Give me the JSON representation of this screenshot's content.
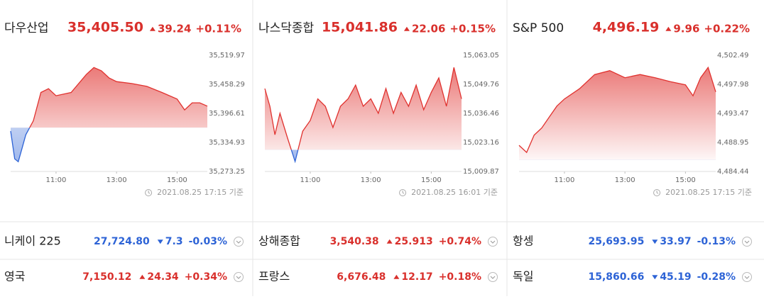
{
  "chart_data": [
    {
      "type": "line",
      "title": "다우산업",
      "price": "35,405.50",
      "change": "39.24",
      "change_pct": "+0.11%",
      "direction": "up",
      "color": "#e0322f",
      "down_color": "#2d63d6",
      "timestamp": "2021.08.25 17:15 기준",
      "xlim": [
        "09:30",
        "16:00"
      ],
      "xticks": [
        "11:00",
        "13:00",
        "15:00"
      ],
      "ylim": [
        35273.25,
        35519.97
      ],
      "yticks": [
        {
          "value": 35273.25,
          "label": "35,273.25"
        },
        {
          "value": 35334.93,
          "label": "35,334.93"
        },
        {
          "value": 35396.61,
          "label": "35,396.61"
        },
        {
          "value": 35458.29,
          "label": "35,458.29"
        },
        {
          "value": 35519.97,
          "label": "35,519.97"
        }
      ],
      "x": [
        "09:30",
        "09:38",
        "09:45",
        "09:52",
        "10:00",
        "10:15",
        "10:30",
        "10:45",
        "11:00",
        "11:30",
        "12:00",
        "12:15",
        "12:30",
        "12:45",
        "13:00",
        "13:30",
        "14:00",
        "14:30",
        "15:00",
        "15:15",
        "15:30",
        "15:45",
        "16:00"
      ],
      "values": [
        35359,
        35300,
        35294,
        35320,
        35351,
        35381,
        35441,
        35449,
        35434,
        35441,
        35479,
        35494,
        35487,
        35472,
        35464,
        35460,
        35454,
        35441,
        35427,
        35404,
        35419,
        35419,
        35412
      ]
    },
    {
      "type": "line",
      "title": "나스닥종합",
      "price": "15,041.86",
      "change": "22.06",
      "change_pct": "+0.15%",
      "direction": "up",
      "color": "#e0322f",
      "down_color": "#2d63d6",
      "timestamp": "2021.08.25 16:01 기준",
      "xlim": [
        "09:30",
        "16:00"
      ],
      "xticks": [
        "11:00",
        "13:00",
        "15:00"
      ],
      "ylim": [
        15009.87,
        15063.05
      ],
      "yticks": [
        {
          "value": 15009.87,
          "label": "15,009.87"
        },
        {
          "value": 15023.16,
          "label": "15,023.16"
        },
        {
          "value": 15036.46,
          "label": "15,036.46"
        },
        {
          "value": 15049.76,
          "label": "15,049.76"
        },
        {
          "value": 15063.05,
          "label": "15,063.05"
        }
      ],
      "x": [
        "09:30",
        "09:40",
        "09:50",
        "10:00",
        "10:15",
        "10:30",
        "10:45",
        "11:00",
        "11:15",
        "11:30",
        "11:45",
        "12:00",
        "12:15",
        "12:30",
        "12:45",
        "13:00",
        "13:15",
        "13:30",
        "13:45",
        "14:00",
        "14:15",
        "14:30",
        "14:45",
        "15:00",
        "15:15",
        "15:30",
        "15:45",
        "16:00"
      ],
      "values": [
        15047.8,
        15039.7,
        15026.7,
        15036.5,
        15025.1,
        15014.4,
        15028.3,
        15033.2,
        15043.1,
        15039.7,
        15030.0,
        15039.7,
        15043.1,
        15049.4,
        15039.7,
        15043.1,
        15036.5,
        15047.8,
        15036.5,
        15046.1,
        15039.7,
        15049.4,
        15038.1,
        15046.1,
        15052.7,
        15039.7,
        15057.5,
        15043.1
      ]
    },
    {
      "type": "line",
      "title": "S&P 500",
      "price": "4,496.19",
      "change": "9.96",
      "change_pct": "+0.22%",
      "direction": "up",
      "color": "#e0322f",
      "down_color": "#2d63d6",
      "timestamp": "2021.08.25 17:15 기준",
      "xlim": [
        "09:30",
        "16:00"
      ],
      "xticks": [
        "11:00",
        "13:00",
        "15:00"
      ],
      "ylim": [
        4484.44,
        4502.49
      ],
      "yticks": [
        {
          "value": 4484.44,
          "label": "4,484.44"
        },
        {
          "value": 4488.95,
          "label": "4,488.95"
        },
        {
          "value": 4493.47,
          "label": "4,493.47"
        },
        {
          "value": 4497.98,
          "label": "4,497.98"
        },
        {
          "value": 4502.49,
          "label": "4,502.49"
        }
      ],
      "x": [
        "09:30",
        "09:45",
        "10:00",
        "10:15",
        "10:30",
        "10:45",
        "11:00",
        "11:30",
        "12:00",
        "12:30",
        "13:00",
        "13:30",
        "14:00",
        "14:30",
        "15:00",
        "15:15",
        "15:30",
        "15:45",
        "16:00"
      ],
      "values": [
        4488.5,
        4487.4,
        4490.1,
        4491.2,
        4492.9,
        4494.6,
        4495.7,
        4497.3,
        4499.5,
        4500.1,
        4499.0,
        4499.5,
        4499.0,
        4498.4,
        4497.9,
        4496.2,
        4499.0,
        4500.6,
        4496.8
      ]
    }
  ],
  "markets": [
    [
      {
        "name": "니케이 225",
        "price": "27,724.80",
        "change": "7.3",
        "change_pct": "-0.03%",
        "direction": "down"
      },
      {
        "name": "상해종합",
        "price": "3,540.38",
        "change": "25.913",
        "change_pct": "+0.74%",
        "direction": "up"
      },
      {
        "name": "항셍",
        "price": "25,693.95",
        "change": "33.97",
        "change_pct": "-0.13%",
        "direction": "down"
      }
    ],
    [
      {
        "name": "영국",
        "price": "7,150.12",
        "change": "24.34",
        "change_pct": "+0.34%",
        "direction": "up"
      },
      {
        "name": "프랑스",
        "price": "6,676.48",
        "change": "12.17",
        "change_pct": "+0.18%",
        "direction": "up"
      },
      {
        "name": "독일",
        "price": "15,860.66",
        "change": "45.19",
        "change_pct": "-0.28%",
        "direction": "down"
      }
    ]
  ]
}
